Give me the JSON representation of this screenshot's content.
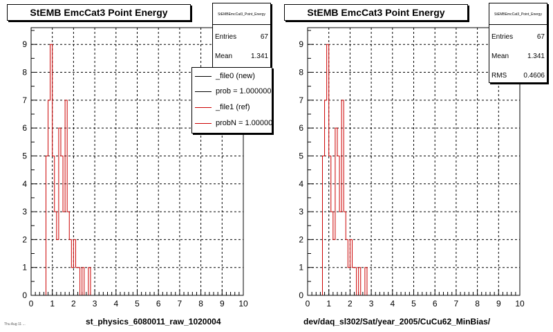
{
  "chart_data": [
    {
      "type": "bar",
      "title": "StEMB EmcCat3 Point Energy",
      "xlabel": "st_physics_6080011_raw_1020004",
      "xlim": [
        0,
        10
      ],
      "ylim": [
        0,
        9.6
      ],
      "xticks": [
        "0",
        "1",
        "2",
        "3",
        "4",
        "5",
        "6",
        "7",
        "8",
        "9",
        "10"
      ],
      "yticks": [
        "0",
        "1",
        "2",
        "3",
        "4",
        "5",
        "6",
        "7",
        "8",
        "9"
      ],
      "grid": true,
      "bin_width": 0.1,
      "stats": {
        "name": "StEMBEmcCat3_Point_Energy",
        "rows": [
          {
            "label": "Entries",
            "value": "67"
          },
          {
            "label": "Mean",
            "value": "1.341"
          }
        ]
      },
      "legend": {
        "placement": "top-right",
        "entries": [
          {
            "label": "_file0 (new)",
            "color": "#000000"
          },
          {
            "label": "prob = 1.000000",
            "color": "#000000"
          },
          {
            "label": "_file1 (ref)",
            "color": "#cc0000"
          },
          {
            "label": "probN = 1.000000",
            "color": "#cc0000"
          }
        ]
      },
      "series": [
        {
          "color": "#cc0000",
          "bins": [
            0.7,
            0.8,
            0.9,
            1.0,
            1.1,
            1.2,
            1.3,
            1.4,
            1.5,
            1.6,
            1.7,
            1.8,
            1.9,
            2.0,
            2.1,
            2.2,
            2.3,
            2.4,
            2.5,
            2.6,
            2.7,
            2.8
          ],
          "values": [
            5,
            7,
            9,
            5,
            3,
            2,
            6,
            5,
            3,
            7,
            3,
            2,
            1,
            2,
            1,
            1,
            0,
            1,
            0,
            0,
            1,
            0
          ]
        }
      ]
    },
    {
      "type": "bar",
      "title": "StEMB EmcCat3 Point Energy",
      "xlabel": "dev/daq_sl302/Sat/year_2005/CuCu62_MinBias/",
      "xlim": [
        0,
        10
      ],
      "ylim": [
        0,
        9.6
      ],
      "xticks": [
        "0",
        "1",
        "2",
        "3",
        "4",
        "5",
        "6",
        "7",
        "8",
        "9",
        "10"
      ],
      "yticks": [
        "0",
        "1",
        "2",
        "3",
        "4",
        "5",
        "6",
        "7",
        "8",
        "9"
      ],
      "grid": true,
      "bin_width": 0.1,
      "stats": {
        "name": "StEMBEmcCat3_Point_Energy",
        "rows": [
          {
            "label": "Entries",
            "value": "67"
          },
          {
            "label": "Mean",
            "value": "1.341"
          },
          {
            "label": "RMS",
            "value": "0.4606"
          }
        ]
      },
      "series": [
        {
          "color": "#cc0000",
          "bins": [
            0.7,
            0.8,
            0.9,
            1.0,
            1.1,
            1.2,
            1.3,
            1.4,
            1.5,
            1.6,
            1.7,
            1.8,
            1.9,
            2.0,
            2.1,
            2.2,
            2.3,
            2.4,
            2.5,
            2.6,
            2.7,
            2.8
          ],
          "values": [
            5,
            7,
            9,
            5,
            3,
            2,
            6,
            5,
            3,
            7,
            3,
            2,
            1,
            2,
            1,
            1,
            0,
            1,
            0,
            0,
            1,
            0
          ]
        }
      ]
    }
  ],
  "footnote": "Thu Aug 11 ..."
}
